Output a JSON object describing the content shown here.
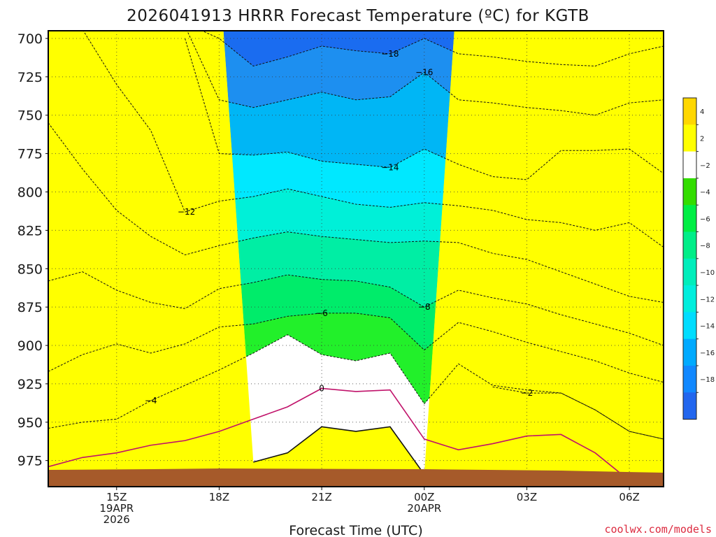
{
  "chart_data": {
    "type": "contour",
    "title": "2026041913 HRRR Forecast Temperature (ºC) for KGTB",
    "xlabel": "Forecast Time (UTC)",
    "ylabel": "",
    "credit": "coolwx.com/models",
    "x_ticks": [
      {
        "hour": 15,
        "lines": [
          "15Z",
          "19APR",
          "2026"
        ]
      },
      {
        "hour": 18,
        "lines": [
          "18Z"
        ]
      },
      {
        "hour": 21,
        "lines": [
          "21Z"
        ]
      },
      {
        "hour": 24,
        "lines": [
          "00Z",
          "20APR"
        ]
      },
      {
        "hour": 27,
        "lines": [
          "03Z"
        ]
      },
      {
        "hour": 30,
        "lines": [
          "06Z"
        ]
      }
    ],
    "x_range_hours": [
      13,
      31
    ],
    "y_ticks_hpa": [
      700,
      725,
      750,
      775,
      800,
      825,
      850,
      875,
      900,
      925,
      950,
      975
    ],
    "y_range_hpa": [
      695,
      992
    ],
    "grid": "dotted",
    "forecast_hours": [
      13,
      14,
      15,
      16,
      17,
      18,
      19,
      20,
      21,
      22,
      23,
      24,
      25,
      26,
      27,
      28,
      29,
      30,
      31
    ],
    "contour_levels_c": [
      -18,
      -16,
      -14,
      -12,
      -10,
      -8,
      -6,
      -4,
      -2,
      0,
      2
    ],
    "isotherms": [
      {
        "level": -18,
        "style": "dashed",
        "label_hour": 23,
        "hpa": [
          null,
          null,
          null,
          null,
          690,
          700,
          718,
          712,
          705,
          708,
          710,
          700,
          710,
          712,
          715,
          717,
          718,
          710,
          705
        ]
      },
      {
        "level": -16,
        "style": "dashed",
        "label_hour": 24,
        "hpa": [
          null,
          null,
          null,
          null,
          692,
          740,
          745,
          740,
          735,
          740,
          738,
          722,
          740,
          742,
          745,
          747,
          750,
          742,
          740
        ]
      },
      {
        "level": -14,
        "style": "dashed",
        "label_hour": 23,
        "hpa": [
          null,
          null,
          null,
          null,
          700,
          775,
          776,
          774,
          780,
          782,
          784,
          772,
          782,
          790,
          792,
          773,
          773,
          772,
          788
        ]
      },
      {
        "level": -12,
        "style": "dashed",
        "label_hour": 17,
        "hpa": [
          692,
          694,
          730,
          760,
          813,
          806,
          803,
          798,
          803,
          808,
          810,
          807,
          809,
          812,
          818,
          820,
          825,
          820,
          836
        ]
      },
      {
        "level": -10,
        "style": "dashed",
        "label_hour": null,
        "hpa": [
          755,
          785,
          812,
          829,
          841,
          835,
          830,
          826,
          829,
          831,
          833,
          832,
          833,
          840,
          844,
          852,
          860,
          868,
          872
        ]
      },
      {
        "level": -8,
        "style": "dashed",
        "label_hour": 24,
        "hpa": [
          858,
          852,
          864,
          872,
          876,
          863,
          859,
          854,
          857,
          858,
          862,
          875,
          864,
          869,
          873,
          880,
          886,
          892,
          900
        ]
      },
      {
        "level": -6,
        "style": "dashed",
        "label_hour": 21,
        "hpa": [
          917,
          906,
          899,
          905,
          899,
          888,
          886,
          881,
          879,
          879,
          882,
          903,
          885,
          891,
          898,
          904,
          910,
          918,
          924
        ]
      },
      {
        "level": -4,
        "style": "dashed",
        "label_hour": 16,
        "hpa": [
          954,
          950,
          948,
          936,
          926,
          916,
          905,
          893,
          906,
          910,
          905,
          938,
          912,
          926,
          929,
          931,
          942,
          956,
          961
        ]
      },
      {
        "level": -2,
        "style": "dashed",
        "label_hour": 27,
        "hpa": [
          null,
          null,
          null,
          null,
          null,
          null,
          null,
          null,
          null,
          null,
          null,
          null,
          null,
          927,
          931,
          931,
          942,
          956,
          961
        ]
      },
      {
        "level": 0,
        "style": "solid",
        "label_hour": 21,
        "hpa": [
          979,
          973,
          970,
          965,
          962,
          956,
          948,
          940,
          928,
          930,
          929,
          961,
          968,
          964,
          959,
          958,
          970,
          988,
          null
        ]
      },
      {
        "level": 2,
        "style": "solid",
        "label_hour": null,
        "hpa": [
          null,
          null,
          null,
          null,
          null,
          null,
          976,
          970,
          953,
          956,
          953,
          984,
          null,
          null,
          null,
          null,
          null,
          null,
          null
        ]
      }
    ],
    "terrain_hpa": 982,
    "colorbar": {
      "labels": [
        "4",
        "2",
        "-2",
        "-4",
        "-6",
        "-8",
        "-10",
        "-12",
        "-14",
        "-16",
        "-18"
      ],
      "colors": [
        "#ffd700",
        "#ffff00",
        "#ffffff",
        "#33dd00",
        "#00ee44",
        "#00ee88",
        "#00eebb",
        "#00eedd",
        "#00ddff",
        "#00aaff",
        "#1188ff",
        "#2266ee"
      ]
    },
    "band_colors": {
      "below_-18": "#1a6cf0",
      "-18_-16": "#1d8ff0",
      "-16_-14": "#00b6f5",
      "-14_-12": "#00e8ff",
      "-12_-10": "#00f0d8",
      "-10_-8": "#00eea4",
      "-8_-6": "#00ec6a",
      "-6_-4": "#22f02a",
      "-4_-2": "#55ff00",
      "-2_0": "#ffffff",
      "0_2": "#ffffff",
      "2_4": "#ffff00",
      "above_4": "#d9a400",
      "terrain": "#a65a2a"
    }
  }
}
